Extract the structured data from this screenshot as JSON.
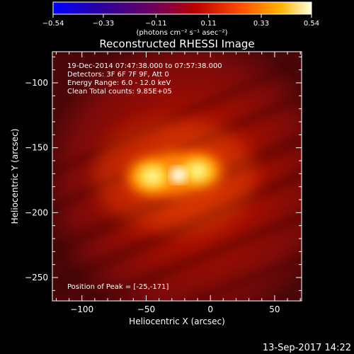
{
  "colorbar": {
    "ticks": [
      "-0.54",
      "-0.33",
      "-0.11",
      "0.11",
      "0.33",
      "0.54"
    ],
    "tick_values": [
      -0.54,
      -0.33,
      -0.11,
      0.11,
      0.33,
      0.54
    ],
    "range": [
      -0.54,
      0.54
    ],
    "units_label": "(photons cm⁻² s⁻¹ asec⁻²)"
  },
  "chart_data": {
    "type": "heatmap",
    "title": "Reconstructed RHESSI Image",
    "xlabel": "Heliocentric X (arcsec)",
    "ylabel": "Heliocentric Y (arcsec)",
    "xlim": [
      -123,
      71
    ],
    "ylim": [
      -268,
      -76
    ],
    "x_ticks": [
      -100,
      -50,
      0,
      50
    ],
    "y_ticks": [
      -100,
      -150,
      -200,
      -250
    ],
    "x_tick_labels": [
      "−100",
      "−50",
      "0",
      "50"
    ],
    "y_tick_labels": [
      "−100",
      "−150",
      "−200",
      "−250"
    ],
    "annotations": [
      "19-Dec-2014 07:47:38.000 to 07:57:38.000",
      "Detectors: 3F 6F 7F 9F, Att 0",
      "Energy Range: 6.0 - 12.0 keV",
      "Clean     Total counts: 9.85E+05"
    ],
    "peak_label": "Position of Peak = [-25,-171]",
    "peak": [
      -25,
      -171
    ],
    "sources": [
      {
        "x": -28,
        "y": -170,
        "peak": 0.54
      },
      {
        "x": -45,
        "y": -172,
        "peak": 0.42
      },
      {
        "x": -10,
        "y": -168,
        "peak": 0.38
      }
    ]
  },
  "timestamp": "13-Sep-2017 14:22"
}
